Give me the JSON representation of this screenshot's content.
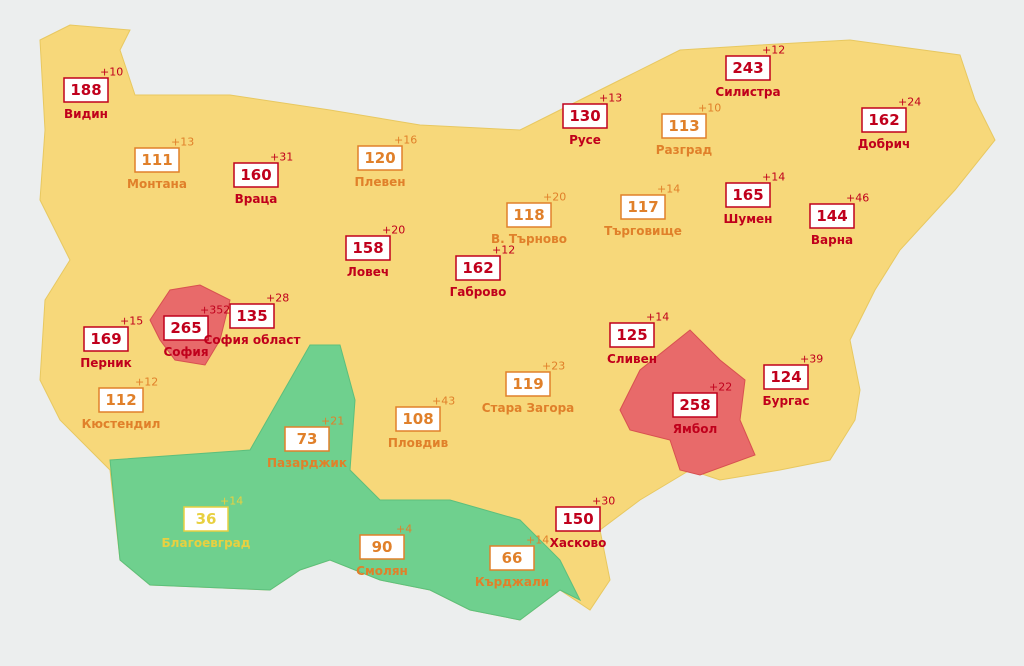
{
  "regions": [
    {
      "name": "Видин",
      "value": 188,
      "delta": "+10",
      "color": "#c0001c"
    },
    {
      "name": "Монтана",
      "value": 111,
      "delta": "+13",
      "color": "#e0802a"
    },
    {
      "name": "Враца",
      "value": 160,
      "delta": "+31",
      "color": "#c0001c"
    },
    {
      "name": "Плевен",
      "value": 120,
      "delta": "+16",
      "color": "#e0802a"
    },
    {
      "name": "Ловеч",
      "value": 158,
      "delta": "+20",
      "color": "#c0001c"
    },
    {
      "name": "Русе",
      "value": 130,
      "delta": "+13",
      "color": "#c0001c"
    },
    {
      "name": "Разград",
      "value": 113,
      "delta": "+10",
      "color": "#e0802a"
    },
    {
      "name": "Силистра",
      "value": 243,
      "delta": "+12",
      "color": "#c0001c"
    },
    {
      "name": "Добрич",
      "value": 162,
      "delta": "+24",
      "color": "#c0001c"
    },
    {
      "name": "Шумен",
      "value": 165,
      "delta": "+14",
      "color": "#c0001c"
    },
    {
      "name": "Варна",
      "value": 144,
      "delta": "+46",
      "color": "#c0001c"
    },
    {
      "name": "Търговище",
      "value": 117,
      "delta": "+14",
      "color": "#e0802a"
    },
    {
      "name": "В. Търново",
      "value": 118,
      "delta": "+20",
      "color": "#e0802a"
    },
    {
      "name": "Габрово",
      "value": 162,
      "delta": "+12",
      "color": "#c0001c"
    },
    {
      "name": "София",
      "value": 265,
      "delta": "+352",
      "color": "#c0001c"
    },
    {
      "name": "София област",
      "value": 135,
      "delta": "+28",
      "color": "#c0001c"
    },
    {
      "name": "Перник",
      "value": 169,
      "delta": "+15",
      "color": "#c0001c"
    },
    {
      "name": "Кюстендил",
      "value": 112,
      "delta": "+12",
      "color": "#e0802a"
    },
    {
      "name": "Сливен",
      "value": 125,
      "delta": "+14",
      "color": "#c0001c"
    },
    {
      "name": "Ямбол",
      "value": 258,
      "delta": "+22",
      "color": "#c0001c"
    },
    {
      "name": "Бургас",
      "value": 124,
      "delta": "+39",
      "color": "#c0001c"
    },
    {
      "name": "Стара Загора",
      "value": 119,
      "delta": "+23",
      "color": "#e0802a"
    },
    {
      "name": "Пловдив",
      "value": 108,
      "delta": "+43",
      "color": "#e0802a"
    },
    {
      "name": "Пазарджик",
      "value": 73,
      "delta": "+21",
      "color": "#e0802a"
    },
    {
      "name": "Благоевград",
      "value": 36,
      "delta": "+14",
      "color": "#e8d040"
    },
    {
      "name": "Смолян",
      "value": 90,
      "delta": "+4",
      "color": "#e0802a"
    },
    {
      "name": "Кърджали",
      "value": 66,
      "delta": "+14",
      "color": "#e0802a"
    },
    {
      "name": "Хасково",
      "value": 150,
      "delta": "+30",
      "color": "#c0001c"
    }
  ]
}
